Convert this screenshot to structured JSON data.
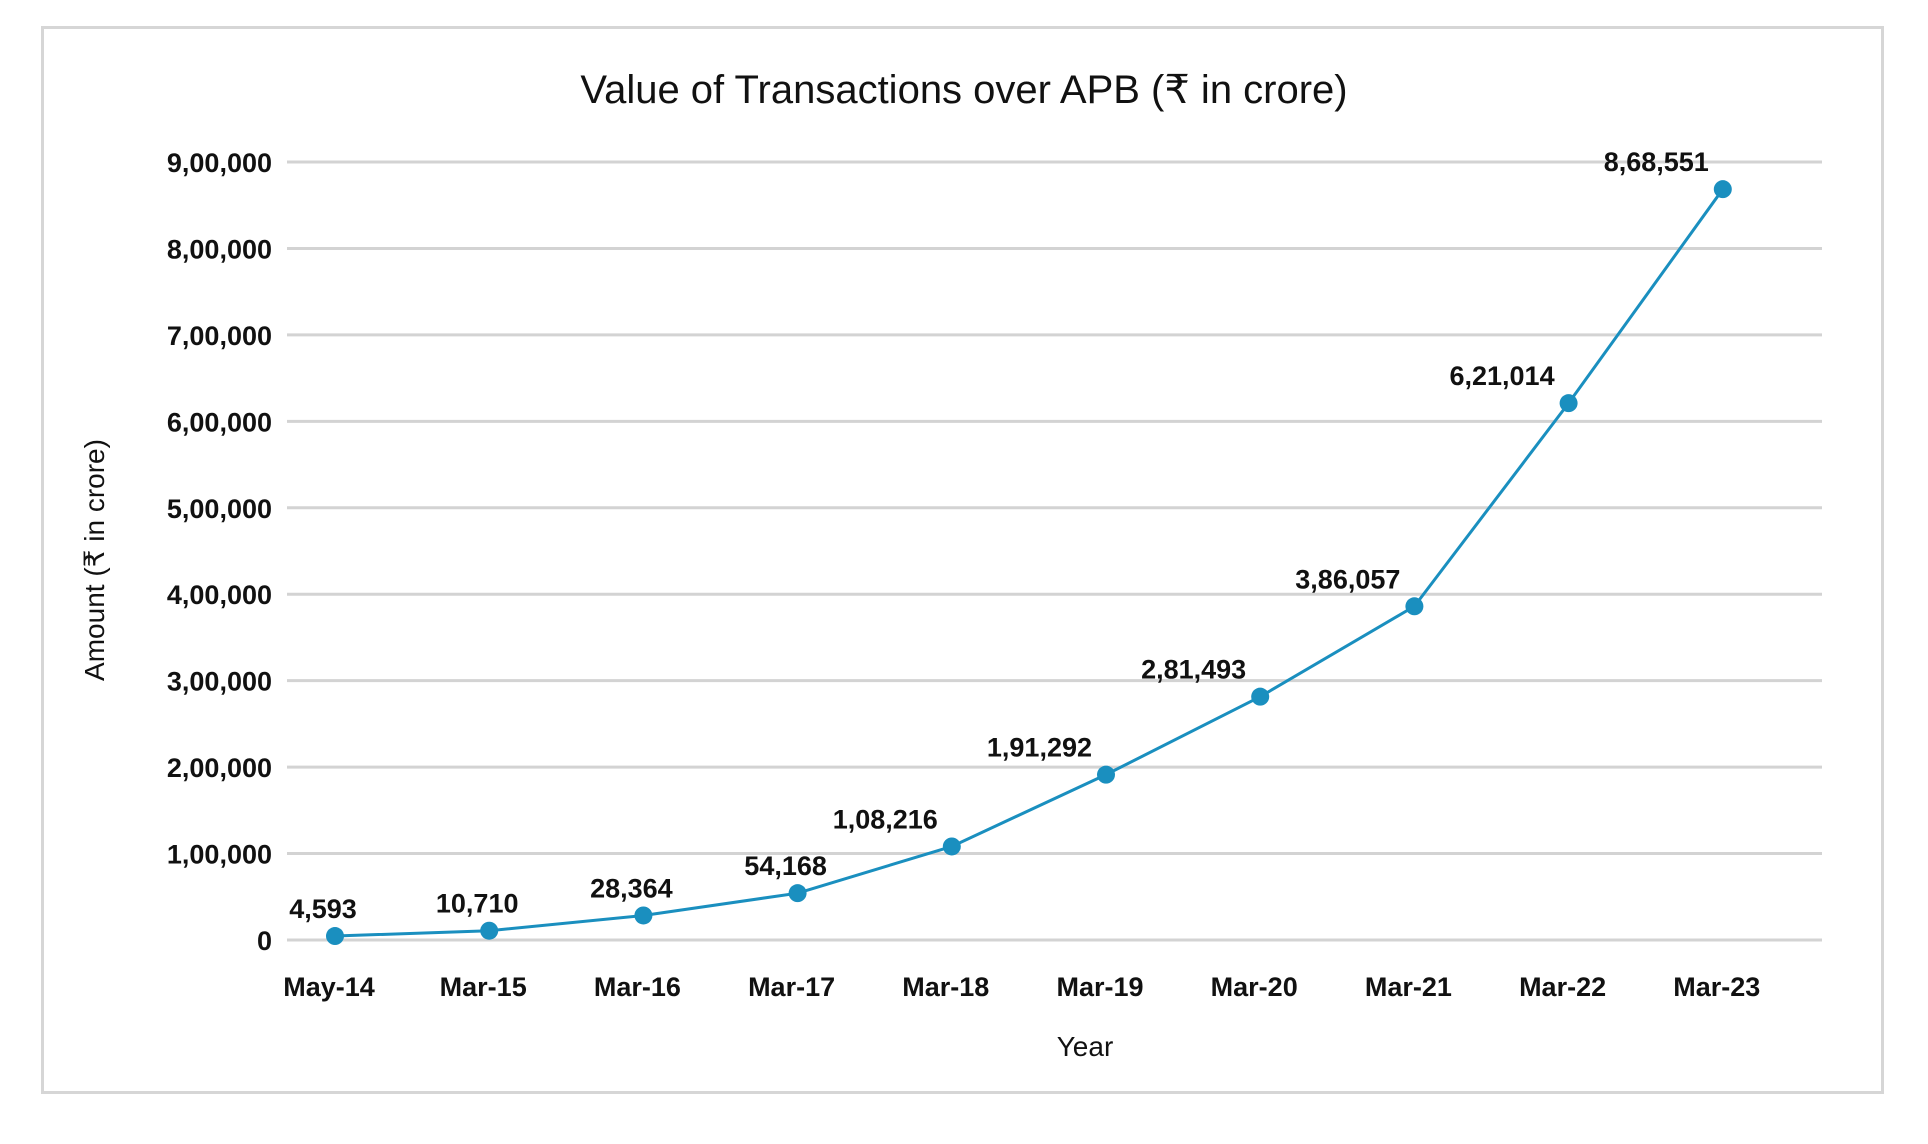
{
  "chart_data": {
    "type": "line",
    "title": "Value of Transactions over APB (₹ in crore)",
    "xlabel": "Year",
    "ylabel": "Amount (₹ in crore)",
    "categories": [
      "May-14",
      "Mar-15",
      "Mar-16",
      "Mar-17",
      "Mar-18",
      "Mar-19",
      "Mar-20",
      "Mar-21",
      "Mar-22",
      "Mar-23"
    ],
    "series": [
      {
        "values": [
          4593,
          10710,
          28364,
          54168,
          108216,
          191292,
          281493,
          386057,
          621014,
          868551
        ],
        "data_labels": [
          "4,593",
          "10,710",
          "28,364",
          "54,168",
          "1,08,216",
          "1,91,292",
          "2,81,493",
          "3,86,057",
          "6,21,014",
          "8,68,551"
        ]
      }
    ],
    "yticks": [
      0,
      100000,
      200000,
      300000,
      400000,
      500000,
      600000,
      700000,
      800000,
      900000
    ],
    "ytick_labels": [
      "0",
      "1,00,000",
      "2,00,000",
      "3,00,000",
      "4,00,000",
      "5,00,000",
      "6,00,000",
      "7,00,000",
      "8,00,000",
      "9,00,000"
    ],
    "ylim": [
      0,
      900000
    ],
    "grid": true,
    "legend": "none",
    "colors": {
      "line": "#1a8fbf",
      "marker": "#1a8fbf",
      "grid": "#d3d3d3"
    }
  }
}
